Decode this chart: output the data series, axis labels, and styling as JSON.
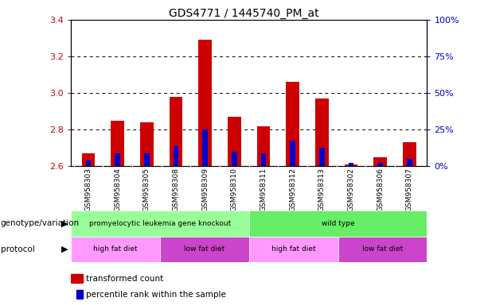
{
  "title": "GDS4771 / 1445740_PM_at",
  "samples": [
    "GSM958303",
    "GSM958304",
    "GSM958305",
    "GSM958308",
    "GSM958309",
    "GSM958310",
    "GSM958311",
    "GSM958312",
    "GSM958313",
    "GSM958302",
    "GSM958306",
    "GSM958307"
  ],
  "red_values": [
    2.67,
    2.85,
    2.84,
    2.98,
    3.29,
    2.87,
    2.82,
    3.06,
    2.97,
    2.61,
    2.65,
    2.73
  ],
  "blue_values": [
    2.63,
    2.67,
    2.67,
    2.71,
    2.8,
    2.68,
    2.67,
    2.74,
    2.7,
    2.62,
    2.62,
    2.64
  ],
  "ymin": 2.6,
  "ymax": 3.4,
  "yticks": [
    2.6,
    2.8,
    3.0,
    3.2,
    3.4
  ],
  "right_yticks": [
    0,
    25,
    50,
    75,
    100
  ],
  "right_ytick_labels": [
    "0%",
    "25%",
    "50%",
    "75%",
    "100%"
  ],
  "red_color": "#CC0000",
  "blue_color": "#0000CC",
  "bar_width": 0.45,
  "blue_bar_width": 0.18,
  "genotype_groups": [
    {
      "label": "promyelocytic leukemia gene knockout",
      "start": 0,
      "end": 6,
      "color": "#99FF99"
    },
    {
      "label": "wild type",
      "start": 6,
      "end": 12,
      "color": "#66EE66"
    }
  ],
  "protocol_groups": [
    {
      "label": "high fat diet",
      "start": 0,
      "end": 3,
      "color": "#FF99FF"
    },
    {
      "label": "low fat diet",
      "start": 3,
      "end": 6,
      "color": "#CC44CC"
    },
    {
      "label": "high fat diet",
      "start": 6,
      "end": 9,
      "color": "#FF99FF"
    },
    {
      "label": "low fat diet",
      "start": 9,
      "end": 12,
      "color": "#CC44CC"
    }
  ],
  "legend_items": [
    {
      "label": "transformed count",
      "color": "#CC0000"
    },
    {
      "label": "percentile rank within the sample",
      "color": "#0000CC"
    }
  ],
  "left_axis_color": "#CC0000",
  "right_axis_color": "#0000CC",
  "plot_bg": "#FFFFFF",
  "xtick_bg": "#CCCCCC",
  "fig_bg": "#FFFFFF"
}
